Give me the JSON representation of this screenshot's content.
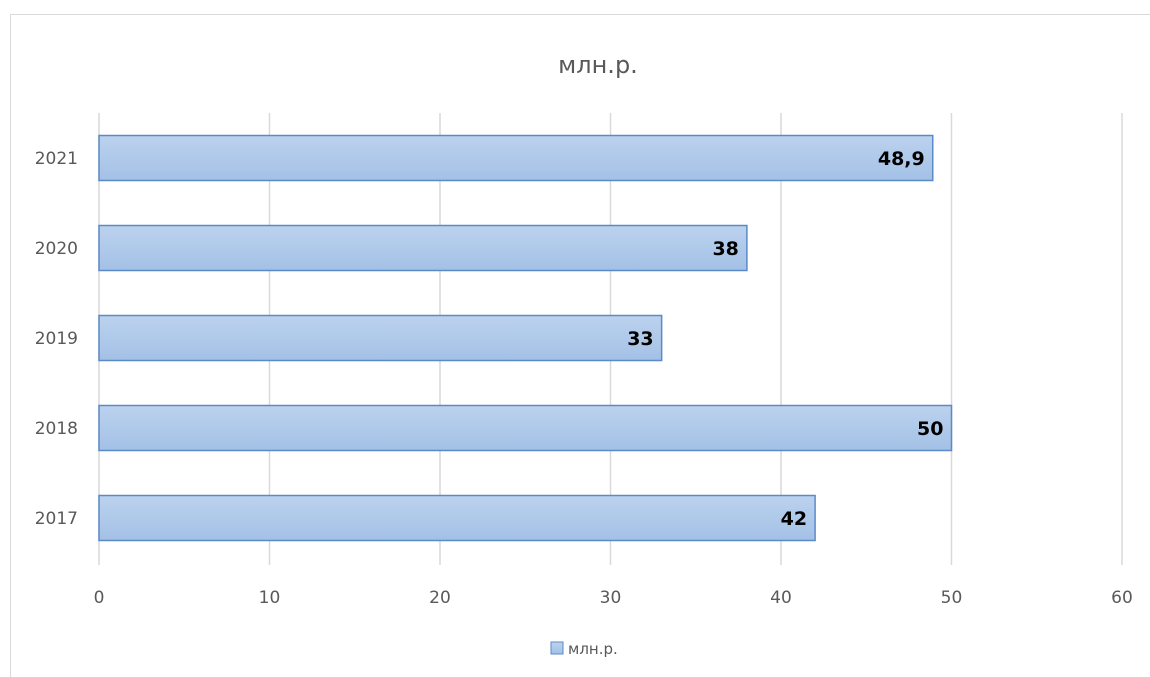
{
  "chart_data": {
    "type": "bar",
    "orientation": "horizontal",
    "title": "млн.р.",
    "categories": [
      "2017",
      "2018",
      "2019",
      "2020",
      "2021"
    ],
    "series": [
      {
        "name": "млн.р.",
        "values": [
          42,
          50,
          33,
          38,
          48.9
        ],
        "labels": [
          "42",
          "50",
          "33",
          "38",
          "48,9"
        ]
      }
    ],
    "xlim": [
      0,
      60
    ],
    "xticks": [
      0,
      10,
      20,
      30,
      40,
      50,
      60
    ],
    "grid": true,
    "legend": "bottom",
    "colors": {
      "bar_top": "#bcd2ee",
      "bar_bottom": "#a3c1e6",
      "bar_border": "#5b8ac8",
      "text": "#595959",
      "label": "#000000"
    }
  }
}
